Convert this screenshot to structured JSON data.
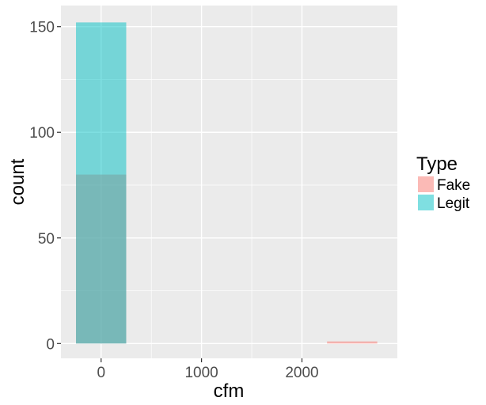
{
  "chart_data": {
    "type": "histogram",
    "xlabel": "cfm",
    "ylabel": "count",
    "x_ticks": [
      0,
      1000,
      2000
    ],
    "y_ticks": [
      0,
      50,
      100,
      150
    ],
    "xlim": [
      -400,
      2950
    ],
    "ylim": [
      -7,
      160
    ],
    "legend": {
      "title": "Type",
      "position": "right"
    },
    "series": [
      {
        "name": "Fake",
        "color": "#F8766D",
        "bins": [
          {
            "x0": -250,
            "x1": 250,
            "count": 80
          },
          {
            "x0": 2250,
            "x1": 2750,
            "count": 1
          }
        ]
      },
      {
        "name": "Legit",
        "color": "#00BFC4",
        "bins": [
          {
            "x0": -250,
            "x1": 250,
            "count": 152
          }
        ]
      }
    ],
    "opacity": 0.5,
    "panel_background": "#EBEBEB",
    "grid": true
  }
}
